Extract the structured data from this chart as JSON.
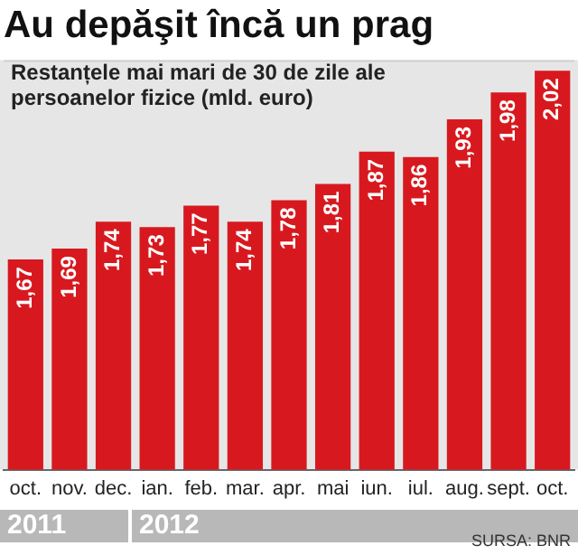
{
  "chart_data": {
    "type": "bar",
    "title": "Au depăşit încă un prag",
    "subtitle": "Restanțele mai mari de 30 de zile ale persoanelor fizice (mld. euro)",
    "categories": [
      "oct.",
      "nov.",
      "dec.",
      "ian.",
      "feb.",
      "mar.",
      "apr.",
      "mai",
      "iun.",
      "iul.",
      "aug.",
      "sept.",
      "oct."
    ],
    "values": [
      1.67,
      1.69,
      1.74,
      1.73,
      1.77,
      1.74,
      1.78,
      1.81,
      1.87,
      1.86,
      1.93,
      1.98,
      2.02
    ],
    "value_labels": [
      "1,67",
      "1,69",
      "1,74",
      "1,73",
      "1,77",
      "1,74",
      "1,78",
      "1,81",
      "1,87",
      "1,86",
      "1,93",
      "1,98",
      "2,02"
    ],
    "color": "#d7191f",
    "ylim": [
      1.28,
      2.04
    ],
    "tick_labels": "x",
    "grid": false,
    "legend": false,
    "annotations": [
      "2011",
      "2012",
      "SURSA: BNR"
    ]
  }
}
